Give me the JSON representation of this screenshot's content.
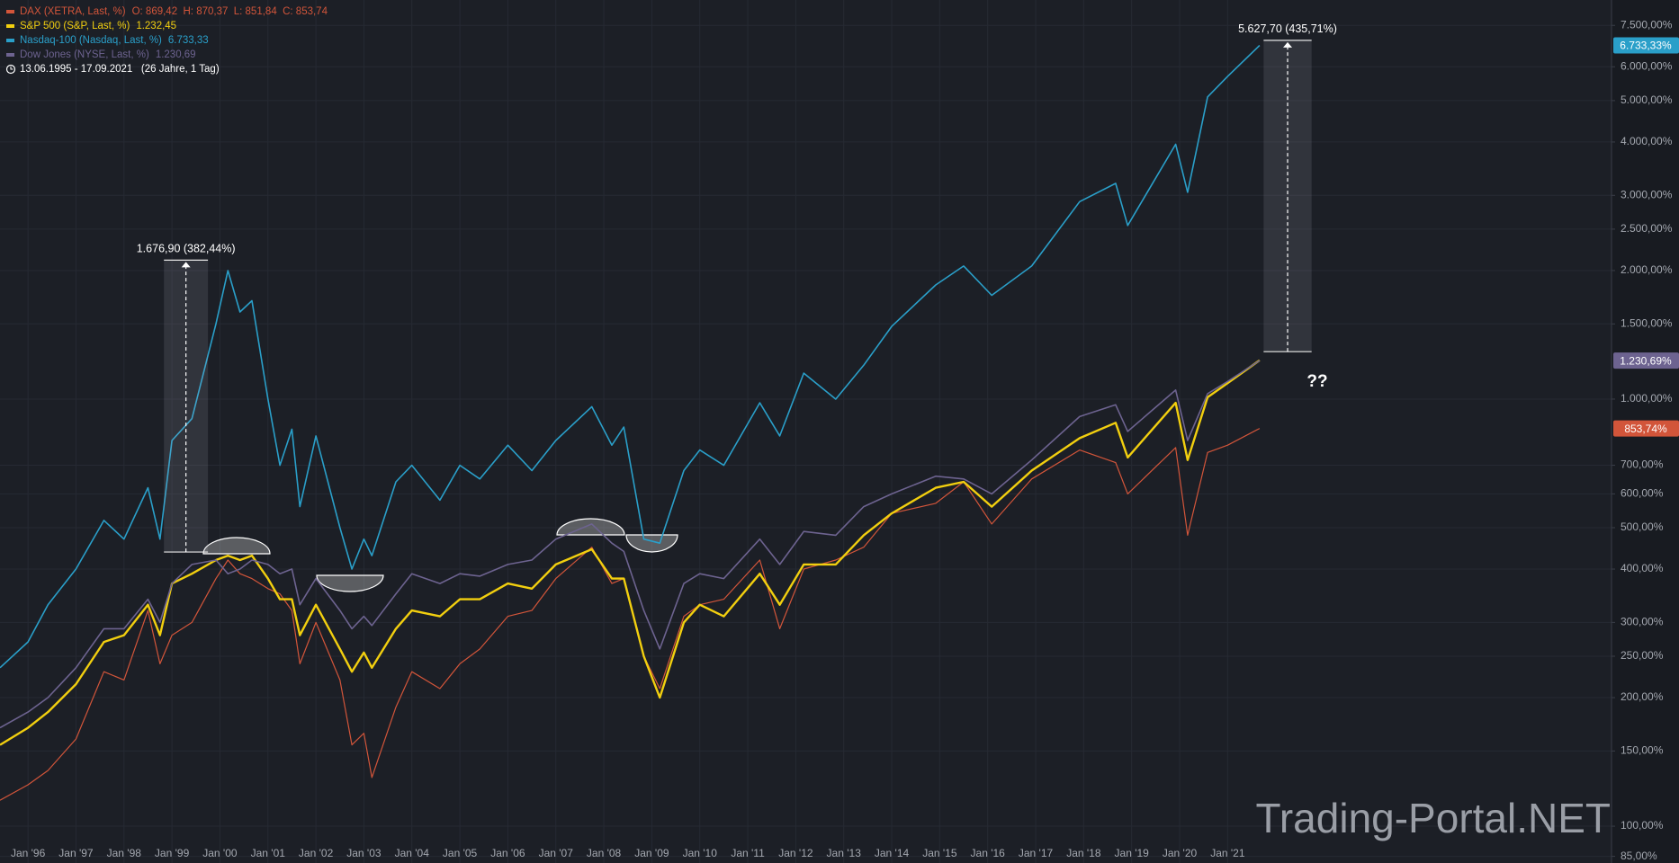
{
  "chart_data": {
    "type": "line",
    "log_scale": true,
    "grid": true,
    "range": "13.06.1995 - 17.09.2021   (26 Jahre, 1 Tag)",
    "watermark": "Trading-Portal.NET",
    "note": "??",
    "x": [
      "1995-06",
      "1996-01",
      "1996-06",
      "1997-01",
      "1997-08",
      "1998-01",
      "1998-07",
      "1998-10",
      "1999-01",
      "1999-06",
      "1999-12",
      "2000-03",
      "2000-06",
      "2000-09",
      "2001-01",
      "2001-04",
      "2001-07",
      "2001-09",
      "2002-01",
      "2002-07",
      "2002-10",
      "2003-01",
      "2003-03",
      "2003-09",
      "2004-01",
      "2004-08",
      "2005-01",
      "2005-06",
      "2006-01",
      "2006-07",
      "2007-01",
      "2007-10",
      "2008-03",
      "2008-06",
      "2008-11",
      "2009-03",
      "2009-09",
      "2010-01",
      "2010-07",
      "2011-04",
      "2011-09",
      "2012-03",
      "2012-11",
      "2013-06",
      "2014-01",
      "2014-12",
      "2015-07",
      "2016-02",
      "2016-12",
      "2017-12",
      "2018-09",
      "2018-12",
      "2019-12",
      "2020-03",
      "2020-08",
      "2021-01",
      "2021-09"
    ],
    "xlim": [
      "1995-06",
      "2029-01"
    ],
    "xticks": [
      {
        "value": "1996-01",
        "label": "Jan '96"
      },
      {
        "value": "1997-01",
        "label": "Jan '97"
      },
      {
        "value": "1998-01",
        "label": "Jan '98"
      },
      {
        "value": "1999-01",
        "label": "Jan '99"
      },
      {
        "value": "2000-01",
        "label": "Jan '00"
      },
      {
        "value": "2001-01",
        "label": "Jan '01"
      },
      {
        "value": "2002-01",
        "label": "Jan '02"
      },
      {
        "value": "2003-01",
        "label": "Jan '03"
      },
      {
        "value": "2004-01",
        "label": "Jan '04"
      },
      {
        "value": "2005-01",
        "label": "Jan '05"
      },
      {
        "value": "2006-01",
        "label": "Jan '06"
      },
      {
        "value": "2007-01",
        "label": "Jan '07"
      },
      {
        "value": "2008-01",
        "label": "Jan '08"
      },
      {
        "value": "2009-01",
        "label": "Jan '09"
      },
      {
        "value": "2010-01",
        "label": "Jan '10"
      },
      {
        "value": "2011-01",
        "label": "Jan '11"
      },
      {
        "value": "2012-01",
        "label": "Jan '12"
      },
      {
        "value": "2013-01",
        "label": "Jan '13"
      },
      {
        "value": "2014-01",
        "label": "Jan '14"
      },
      {
        "value": "2015-01",
        "label": "Jan '15"
      },
      {
        "value": "2016-01",
        "label": "Jan '16"
      },
      {
        "value": "2017-01",
        "label": "Jan '17"
      },
      {
        "value": "2018-01",
        "label": "Jan '18"
      },
      {
        "value": "2019-01",
        "label": "Jan '19"
      },
      {
        "value": "2020-01",
        "label": "Jan '20"
      },
      {
        "value": "2021-01",
        "label": "Jan '21"
      }
    ],
    "ylim": [
      82,
      8600
    ],
    "yticks": [
      {
        "value": 85,
        "label": "85,00%"
      },
      {
        "value": 100,
        "label": "100,00%"
      },
      {
        "value": 150,
        "label": "150,00%"
      },
      {
        "value": 200,
        "label": "200,00%"
      },
      {
        "value": 250,
        "label": "250,00%"
      },
      {
        "value": 300,
        "label": "300,00%"
      },
      {
        "value": 400,
        "label": "400,00%"
      },
      {
        "value": 500,
        "label": "500,00%"
      },
      {
        "value": 600,
        "label": "600,00%"
      },
      {
        "value": 700,
        "label": "700,00%"
      },
      {
        "value": 1000,
        "label": "1.000,00%"
      },
      {
        "value": 1500,
        "label": "1.500,00%"
      },
      {
        "value": 2000,
        "label": "2.000,00%"
      },
      {
        "value": 2500,
        "label": "2.500,00%"
      },
      {
        "value": 3000,
        "label": "3.000,00%"
      },
      {
        "value": 4000,
        "label": "4.000,00%"
      },
      {
        "value": 5000,
        "label": "5.000,00%"
      },
      {
        "value": 6000,
        "label": "6.000,00%"
      },
      {
        "value": 7500,
        "label": "7.500,00%"
      }
    ],
    "series": [
      {
        "name": "DAX (XETRA, Last, %)",
        "legend_value": "O: 869,42  H: 870,37  L: 851,84  C: 853,74",
        "badge": "853,74%",
        "color": "#d2553a",
        "width": 1.2,
        "values": [
          115,
          125,
          135,
          160,
          230,
          220,
          320,
          240,
          280,
          300,
          380,
          420,
          390,
          380,
          360,
          350,
          320,
          240,
          300,
          220,
          155,
          165,
          130,
          190,
          230,
          210,
          240,
          260,
          310,
          320,
          380,
          450,
          370,
          380,
          250,
          210,
          310,
          330,
          340,
          420,
          290,
          400,
          420,
          450,
          540,
          570,
          640,
          510,
          650,
          760,
          710,
          600,
          770,
          480,
          750,
          780,
          853.74
        ]
      },
      {
        "name": "S&P 500 (S&P, Last, %)",
        "legend_value": "1.232,45",
        "color": "#f2cf0f",
        "width": 2.4,
        "values": [
          155,
          170,
          185,
          215,
          270,
          280,
          330,
          280,
          370,
          390,
          420,
          430,
          420,
          430,
          380,
          340,
          340,
          280,
          330,
          260,
          230,
          255,
          235,
          290,
          320,
          310,
          340,
          340,
          370,
          360,
          410,
          445,
          380,
          380,
          250,
          200,
          300,
          330,
          310,
          390,
          330,
          410,
          410,
          480,
          540,
          620,
          640,
          560,
          680,
          810,
          880,
          730,
          980,
          720,
          1010,
          1090,
          1232.45
        ]
      },
      {
        "name": "Nasdaq-100 (Nasdaq, Last, %)",
        "legend_value": "6.733,33",
        "badge": "6.733,33%",
        "color": "#2a9fc9",
        "width": 1.6,
        "values": [
          235,
          270,
          330,
          400,
          520,
          470,
          620,
          470,
          800,
          900,
          1500,
          2000,
          1600,
          1700,
          1000,
          700,
          850,
          560,
          820,
          500,
          400,
          470,
          430,
          640,
          700,
          580,
          700,
          650,
          780,
          680,
          800,
          960,
          780,
          860,
          470,
          460,
          680,
          760,
          700,
          980,
          820,
          1150,
          1000,
          1200,
          1480,
          1850,
          2050,
          1750,
          2050,
          2900,
          3200,
          2550,
          3950,
          3050,
          5100,
          5700,
          6733.33
        ]
      },
      {
        "name": "Dow Jones (NYSE, Last, %)",
        "legend_value": "1.230,69",
        "badge": "1.230,69%",
        "color": "#6d6390",
        "width": 1.6,
        "values": [
          170,
          185,
          200,
          235,
          290,
          290,
          340,
          300,
          370,
          410,
          420,
          390,
          400,
          420,
          410,
          390,
          400,
          330,
          380,
          320,
          290,
          310,
          295,
          350,
          390,
          370,
          390,
          385,
          410,
          420,
          470,
          510,
          460,
          440,
          320,
          260,
          370,
          390,
          380,
          470,
          410,
          490,
          480,
          560,
          600,
          660,
          650,
          600,
          720,
          910,
          970,
          840,
          1050,
          800,
          1030,
          1100,
          1230.69
        ]
      }
    ],
    "measurements": [
      {
        "label": "1.676,90 (382,44%)",
        "from": 438.5,
        "to": 2115.4,
        "start": "1998-11",
        "end": "1999-10"
      },
      {
        "label": "5.627,70 (435,71%)",
        "from": 1291.6,
        "to": 6919.3,
        "start": "2021-10",
        "end": "2022-10"
      }
    ]
  }
}
